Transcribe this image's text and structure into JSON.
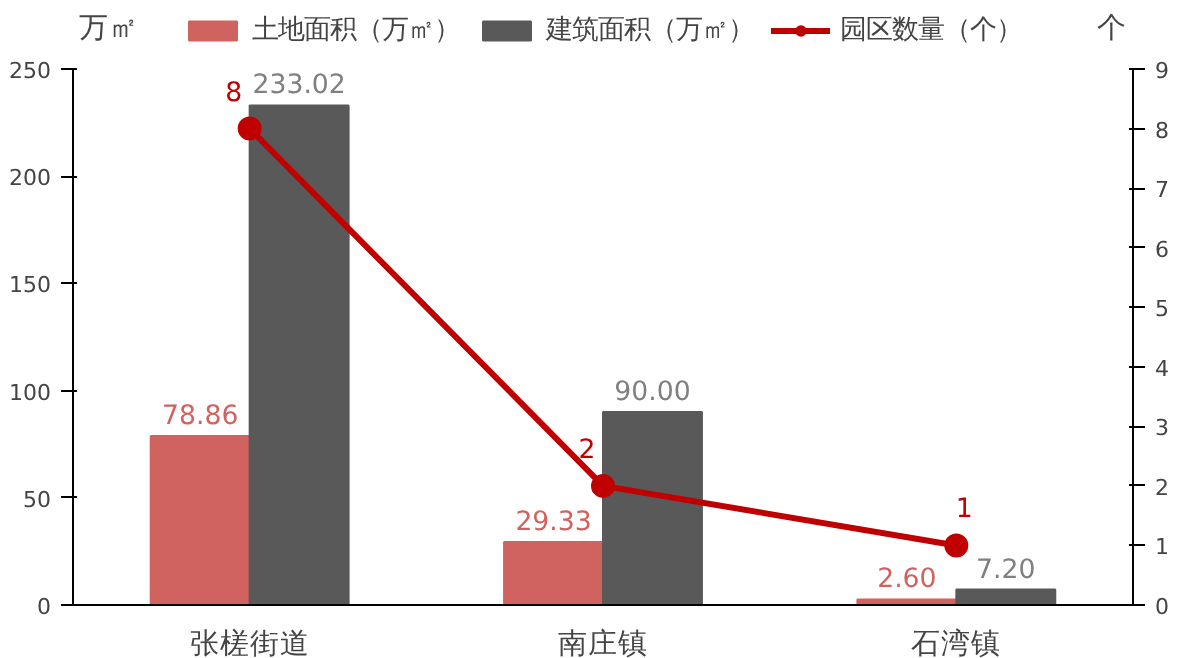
{
  "chart_data": {
    "type": "bar",
    "categories": [
      "张槎街道",
      "南庄镇",
      "石湾镇"
    ],
    "ylabel": "万㎡",
    "y2label": "个",
    "ylim": [
      0,
      250
    ],
    "yticks": [
      0,
      50,
      100,
      150,
      200,
      250
    ],
    "y2lim": [
      0,
      9
    ],
    "y2ticks": [
      0,
      1,
      2,
      3,
      4,
      5,
      6,
      7,
      8,
      9
    ],
    "legend": "top",
    "grid": false,
    "series": [
      {
        "name": "土地面积（万㎡）",
        "color": "#d0625f",
        "values": [
          78.86,
          29.33,
          2.6
        ],
        "value_labels": [
          "78.86",
          "29.33",
          "2.60"
        ]
      },
      {
        "name": "建筑面积（万㎡）",
        "color": "#595959",
        "values": [
          233.02,
          90.0,
          7.2
        ],
        "value_labels": [
          "233.02",
          "90.00",
          "7.20"
        ]
      },
      {
        "name": "园区数量（个）",
        "type": "line",
        "axis": "y2",
        "color": "#c00000",
        "marker": "circle",
        "line_style": "solid",
        "values": [
          8,
          2,
          1
        ],
        "value_labels": [
          "8",
          "2",
          "1"
        ]
      }
    ]
  }
}
